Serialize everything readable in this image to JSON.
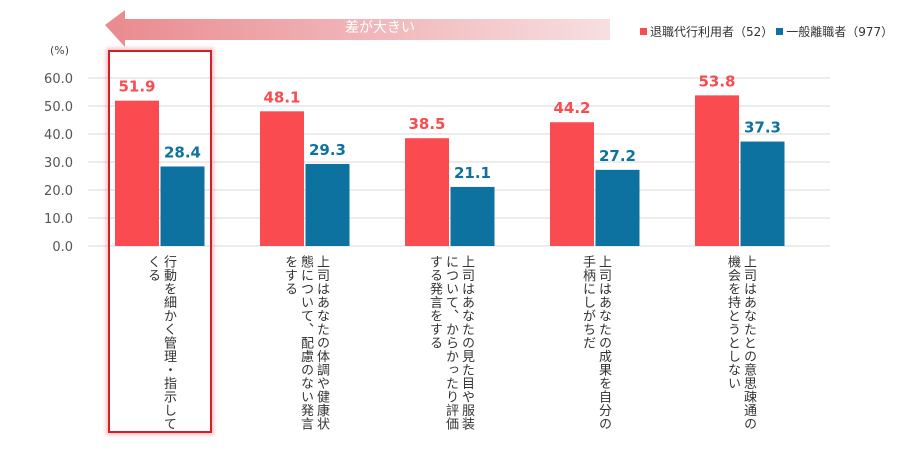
{
  "chart_data": {
    "type": "bar",
    "ylabel": "(%)",
    "ylim": [
      0,
      60
    ],
    "yticks": [
      "0.0",
      "10.0",
      "20.0",
      "30.0",
      "40.0",
      "50.0",
      "60.0"
    ],
    "grid": true,
    "legend_position": "top-right",
    "categories": [
      [
        "行動を細かく管理・指示して",
        "くる"
      ],
      [
        "上司はあなたの体調や健康状",
        "態について、配慮のない発言",
        "をする"
      ],
      [
        "上司はあなたの見た目や服装",
        "について、からかったり評価",
        "する発言をする"
      ],
      [
        "上司はあなたの成果を自分の",
        "手柄にしがちだ"
      ],
      [
        "上司はあなたとの意思疎通の",
        "機会を持とうとしない"
      ]
    ],
    "series": [
      {
        "name": "退職代行利用者（52）",
        "color": "#fa4b50",
        "values": [
          51.9,
          48.1,
          38.5,
          44.2,
          53.8
        ],
        "labels": [
          "51.9",
          "48.1",
          "38.5",
          "44.2",
          "53.8"
        ]
      },
      {
        "name": "一般離職者（977）",
        "color": "#0d72a0",
        "values": [
          28.4,
          29.3,
          21.1,
          27.2,
          37.3
        ],
        "labels": [
          "28.4",
          "29.3",
          "21.1",
          "27.2",
          "37.3"
        ]
      }
    ],
    "annotation": "差が大きい",
    "highlighted_category_index": 0
  }
}
